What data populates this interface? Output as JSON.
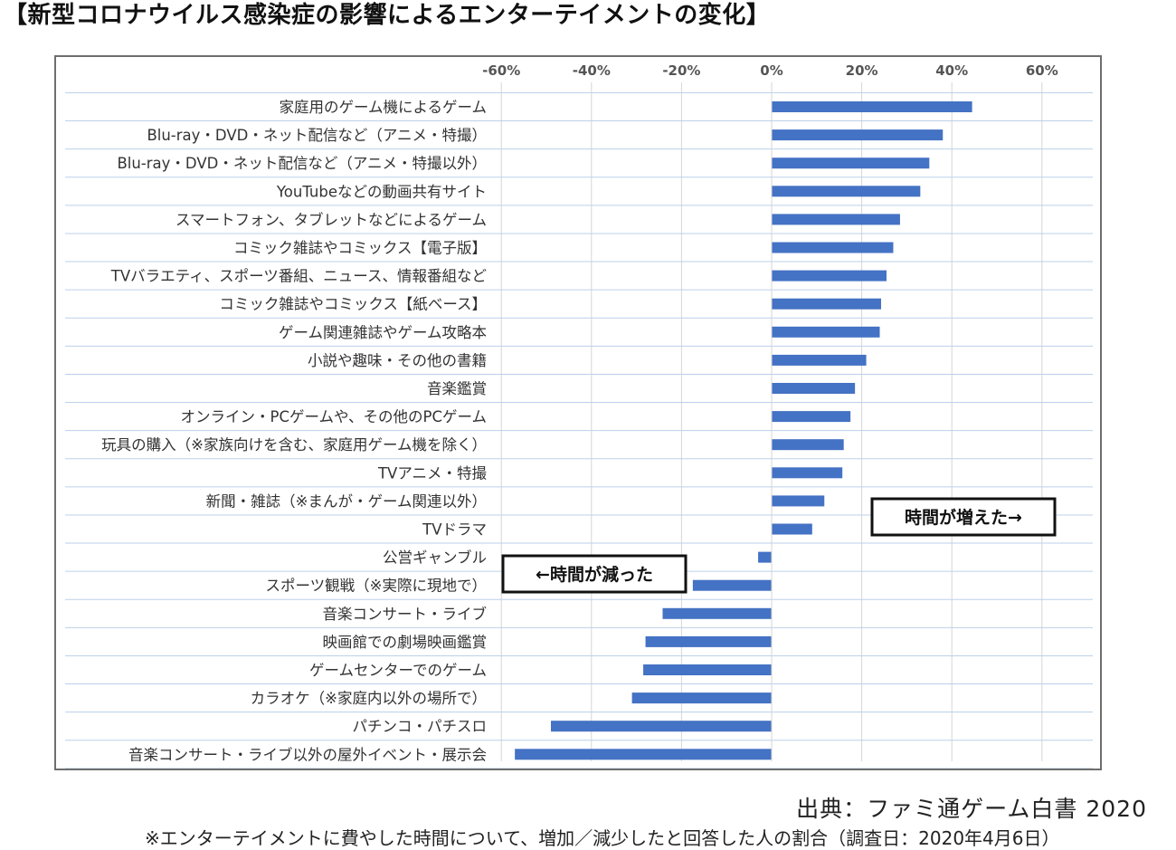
{
  "header": {
    "title": "【新型コロナウイルス感染症の影響によるエンターテイメントの変化】"
  },
  "chart_data": {
    "type": "bar",
    "orientation": "horizontal",
    "xlim": [
      -60,
      60
    ],
    "x_ticks": [
      -60,
      -40,
      -20,
      0,
      20,
      40,
      60
    ],
    "tick_labels": [
      "-60%",
      "-40%",
      "-20%",
      "0%",
      "20%",
      "40%",
      "60%"
    ],
    "tick_position": "top",
    "grid": true,
    "bar_color": "#4472C4",
    "categories": [
      "家庭用のゲーム機によるゲーム",
      "Blu-ray・DVD・ネット配信など（アニメ・特撮）",
      "Blu-ray・DVD・ネット配信など（アニメ・特撮以外）",
      "YouTubeなどの動画共有サイト",
      "スマートフォン、タブレットなどによるゲーム",
      "コミック雑誌やコミックス【電子版】",
      "TVバラエティ、スポーツ番組、ニュース、情報番組など",
      "コミック雑誌やコミックス【紙ベース】",
      "ゲーム関連雑誌やゲーム攻略本",
      "小説や趣味・その他の書籍",
      "音楽鑑賞",
      "オンライン・PCゲームや、その他のPCゲーム",
      "玩具の購入（※家族向けを含む、家庭用ゲーム機を除く）",
      "TVアニメ・特撮",
      "新聞・雑誌（※まんが・ゲーム関連以外）",
      "TVドラマ",
      "公営ギャンブル",
      "スポーツ観戦（※実際に現地で）",
      "音楽コンサート・ライブ",
      "映画館での劇場映画鑑賞",
      "ゲームセンターでのゲーム",
      "カラオケ（※家庭内以外の場所で）",
      "パチンコ・パチスロ",
      "音楽コンサート・ライブ以外の屋外イベント・展示会"
    ],
    "values": [
      44.5,
      38,
      35,
      33,
      28.5,
      27,
      25.5,
      24.3,
      24,
      21,
      18.5,
      17.5,
      16,
      15.7,
      11.7,
      9,
      -3,
      -17.5,
      -24.2,
      -28,
      -28.5,
      -31,
      -49,
      -57
    ],
    "annotations": [
      {
        "text": "時間が増えた→",
        "position": "right"
      },
      {
        "text": "←時間が減った",
        "position": "left"
      }
    ]
  },
  "footer": {
    "source": "出典：ファミ通ゲーム白書 2020",
    "note": "※エンターテイメントに費やした時間について、増加／減少したと回答した人の割合（調査日：2020年4月6日）"
  }
}
